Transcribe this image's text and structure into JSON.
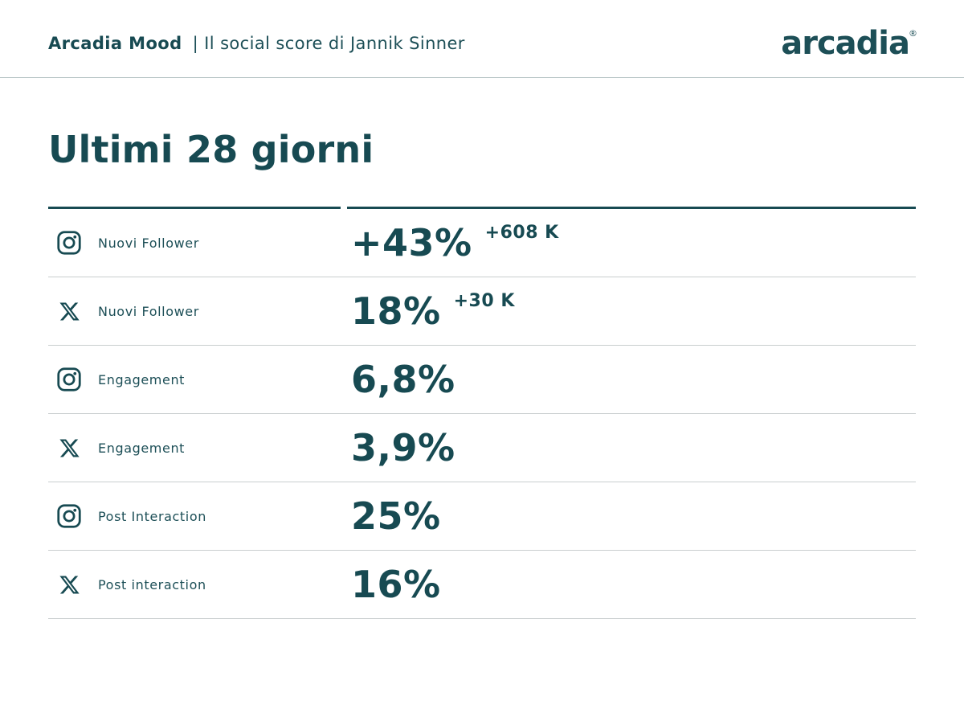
{
  "colors": {
    "accent": "#174a52",
    "divider_light": "#c9cecf",
    "header_divider": "#b7c4c6"
  },
  "header": {
    "brand": "Arcadia Mood",
    "subtitle": "| Il social score di Jannik Sinner",
    "logo_text": "arcadia",
    "logo_mark": "®"
  },
  "page": {
    "title": "Ultimi 28 giorni"
  },
  "table": {
    "rows": [
      {
        "platform": "instagram",
        "icon": "instagram-icon",
        "label": "Nuovi Follower",
        "value": "+43%",
        "delta": "+608 K"
      },
      {
        "platform": "x",
        "icon": "x-icon",
        "label": "Nuovi Follower",
        "value": "18%",
        "delta": "+30 K"
      },
      {
        "platform": "instagram",
        "icon": "instagram-icon",
        "label": "Engagement",
        "value": "6,8%",
        "delta": ""
      },
      {
        "platform": "x",
        "icon": "x-icon",
        "label": "Engagement",
        "value": "3,9%",
        "delta": ""
      },
      {
        "platform": "instagram",
        "icon": "instagram-icon",
        "label": "Post Interaction",
        "value": "25%",
        "delta": ""
      },
      {
        "platform": "x",
        "icon": "x-icon",
        "label": "Post interaction",
        "value": "16%",
        "delta": ""
      }
    ]
  },
  "chart_data": {
    "type": "table",
    "title": "Ultimi 28 giorni",
    "subtitle": "Arcadia Mood | Il social score di Jannik Sinner",
    "columns": [
      "platform",
      "metric",
      "value",
      "delta"
    ],
    "rows": [
      [
        "Instagram",
        "Nuovi Follower",
        "+43%",
        "+608 K"
      ],
      [
        "X",
        "Nuovi Follower",
        "18%",
        "+30 K"
      ],
      [
        "Instagram",
        "Engagement",
        "6,8%",
        ""
      ],
      [
        "X",
        "Engagement",
        "3,9%",
        ""
      ],
      [
        "Instagram",
        "Post Interaction",
        "25%",
        ""
      ],
      [
        "X",
        "Post interaction",
        "16%",
        ""
      ]
    ]
  }
}
